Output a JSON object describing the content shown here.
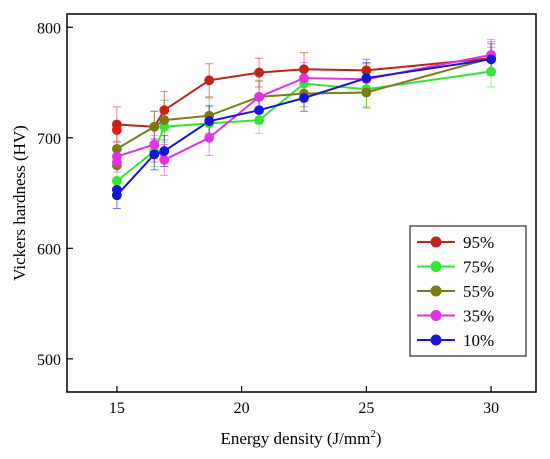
{
  "chart_data": {
    "type": "line",
    "xlabel": "Energy density (J/mm",
    "xlabel_sup": "2",
    "xlabel_close": ")",
    "ylabel": "Vickers hardness (HV)",
    "xlim": [
      13,
      31.8
    ],
    "ylim": [
      470,
      812
    ],
    "xticks": [
      15,
      20,
      25,
      30
    ],
    "yticks": [
      500,
      600,
      700,
      800
    ],
    "grid": false,
    "legend_position": "bottom-right",
    "series": [
      {
        "name": "95%",
        "color": "#c0221a",
        "points": [
          {
            "x": 15.0,
            "y": 712,
            "err": 16
          },
          {
            "x": 16.5,
            "y": 710,
            "err": 14
          },
          {
            "x": 16.9,
            "y": 725,
            "err": 17
          },
          {
            "x": 18.7,
            "y": 752,
            "err": 15
          },
          {
            "x": 20.7,
            "y": 759,
            "err": 13
          },
          {
            "x": 22.5,
            "y": 762,
            "err": 15
          },
          {
            "x": 25.0,
            "y": 761,
            "err": 10
          },
          {
            "x": 30.0,
            "y": 772,
            "err": 10
          }
        ]
      },
      {
        "name": "75%",
        "color": "#33e633",
        "points": [
          {
            "x": 15.0,
            "y": 661,
            "err": 16
          },
          {
            "x": 16.5,
            "y": 688,
            "err": 14
          },
          {
            "x": 16.9,
            "y": 710,
            "err": 14
          },
          {
            "x": 18.7,
            "y": 713,
            "err": 15
          },
          {
            "x": 20.7,
            "y": 716,
            "err": 12
          },
          {
            "x": 22.5,
            "y": 749,
            "err": 12
          },
          {
            "x": 25.0,
            "y": 744,
            "err": 16
          },
          {
            "x": 30.0,
            "y": 760,
            "err": 14
          }
        ]
      },
      {
        "name": "55%",
        "color": "#7a7a16",
        "points": [
          {
            "x": 15.0,
            "y": 690,
            "err": 17
          },
          {
            "x": 16.5,
            "y": 710,
            "err": 14
          },
          {
            "x": 16.9,
            "y": 716,
            "err": 18
          },
          {
            "x": 18.7,
            "y": 720,
            "err": 16
          },
          {
            "x": 20.7,
            "y": 737,
            "err": 15
          },
          {
            "x": 22.5,
            "y": 740,
            "err": 12
          },
          {
            "x": 25.0,
            "y": 741,
            "err": 14
          },
          {
            "x": 30.0,
            "y": 772,
            "err": 15
          }
        ]
      },
      {
        "name": "35%",
        "color": "#e331e3",
        "points": [
          {
            "x": 15.0,
            "y": 683,
            "err": 14
          },
          {
            "x": 16.5,
            "y": 694,
            "err": 16
          },
          {
            "x": 16.9,
            "y": 680,
            "err": 14
          },
          {
            "x": 18.7,
            "y": 700,
            "err": 16
          },
          {
            "x": 20.7,
            "y": 737,
            "err": 14
          },
          {
            "x": 22.5,
            "y": 754,
            "err": 14
          },
          {
            "x": 25.0,
            "y": 753,
            "err": 14
          },
          {
            "x": 30.0,
            "y": 775,
            "err": 14
          }
        ]
      },
      {
        "name": "10%",
        "color": "#1616d8",
        "points": [
          {
            "x": 15.0,
            "y": 648,
            "err": 12
          },
          {
            "x": 16.5,
            "y": 685,
            "err": 14
          },
          {
            "x": 16.9,
            "y": 688,
            "err": 14
          },
          {
            "x": 18.7,
            "y": 715,
            "err": 14
          },
          {
            "x": 20.7,
            "y": 725,
            "err": 12
          },
          {
            "x": 22.5,
            "y": 736,
            "err": 12
          },
          {
            "x": 25.0,
            "y": 754,
            "err": 14
          },
          {
            "x": 30.0,
            "y": 771,
            "err": 14
          }
        ]
      }
    ],
    "extra_markers": [
      {
        "x": 15.0,
        "y": 707,
        "color": "#e81818"
      },
      {
        "x": 15.0,
        "y": 675,
        "color": "#7a7a16"
      },
      {
        "x": 15.0,
        "y": 678,
        "color": "#e331e3"
      },
      {
        "x": 15.0,
        "y": 653,
        "color": "#1616d8"
      }
    ]
  }
}
